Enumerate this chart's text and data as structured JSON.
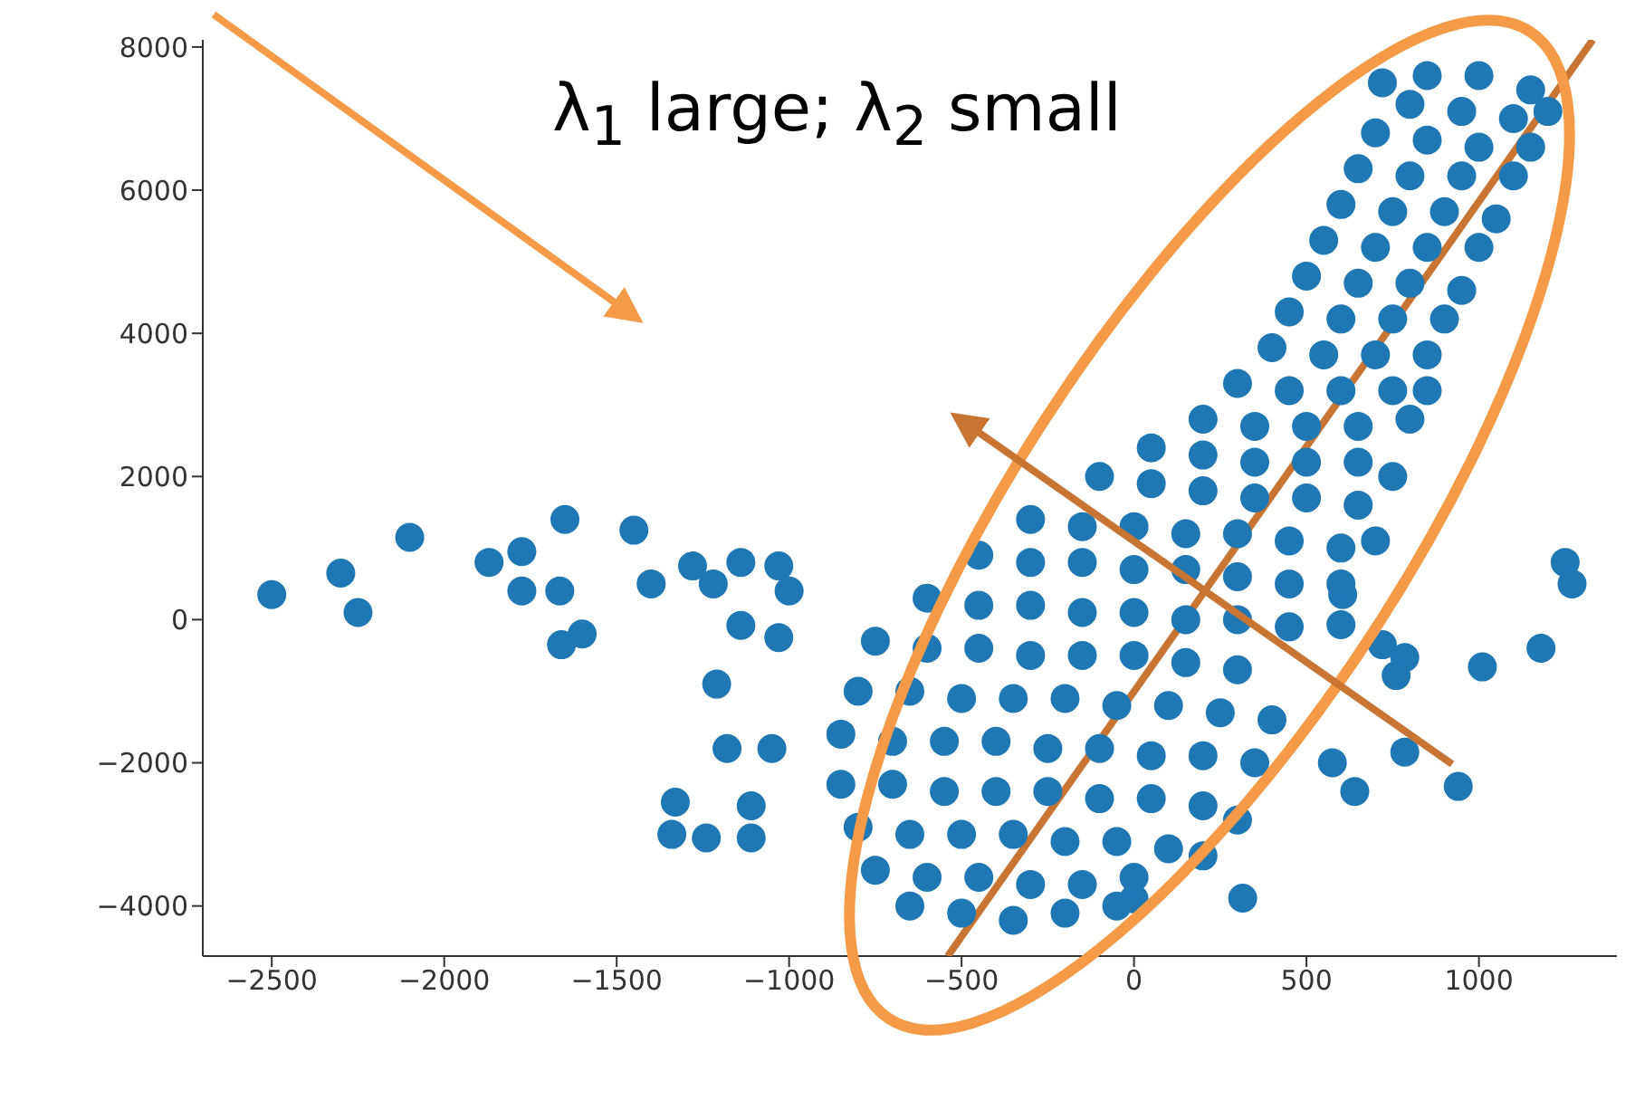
{
  "chart_data": {
    "type": "scatter",
    "marker": "circle",
    "grid": false,
    "legend": false,
    "annotations": [
      "λ$_{1}$ large; λ$_{2}$ small"
    ],
    "xlim": [
      -2700,
      1400
    ],
    "ylim": [
      -4700,
      8100
    ],
    "xticks": [
      {
        "value": -2500,
        "label": "−2500"
      },
      {
        "value": -2000,
        "label": "−2000"
      },
      {
        "value": -1500,
        "label": "−1500"
      },
      {
        "value": -1000,
        "label": "−1000"
      },
      {
        "value": -500,
        "label": "−500"
      },
      0,
      500,
      1000
    ],
    "yticks": [
      {
        "value": -4000,
        "label": "−4000"
      },
      {
        "value": -2000,
        "label": "−2000"
      },
      0,
      2000,
      4000,
      6000,
      8000
    ],
    "series": [
      {
        "type": "line",
        "marker": "none",
        "color": "#c87533",
        "x": [
          -540,
          1330
        ],
        "values": [
          -4700,
          8100
        ]
      },
      {
        "color": "#1f77b4",
        "x": [
          -2500,
          -2300,
          -2250,
          -2100,
          -1870,
          -1775,
          -1775,
          -1665,
          -1650,
          -1660,
          -1600,
          -1450,
          -1400,
          -1280,
          -1220,
          -1140,
          -1030,
          -1000,
          -1140,
          -1030,
          -1210,
          -1180,
          -1050,
          -1340,
          -1240,
          -1110,
          -1110,
          -1330,
          1250,
          1270,
          1180,
          1010,
          785,
          605,
          600,
          720,
          785,
          575,
          760,
          940,
          640,
          315,
          0,
          720,
          850,
          1000,
          1150,
          1200,
          800,
          950,
          1100,
          700,
          850,
          1000,
          1150,
          650,
          800,
          950,
          1100,
          600,
          750,
          900,
          1050,
          550,
          700,
          850,
          1000,
          500,
          650,
          800,
          950,
          450,
          600,
          750,
          900,
          400,
          550,
          700,
          850,
          300,
          450,
          600,
          750,
          850,
          200,
          350,
          500,
          650,
          800,
          50,
          200,
          350,
          500,
          650,
          750,
          -100,
          50,
          200,
          350,
          500,
          650,
          -300,
          -150,
          0,
          150,
          300,
          450,
          600,
          700,
          -450,
          -300,
          -150,
          0,
          150,
          300,
          450,
          600,
          -600,
          -450,
          -300,
          -150,
          0,
          150,
          300,
          450,
          -750,
          -600,
          -450,
          -300,
          -150,
          0,
          150,
          300,
          -800,
          -650,
          -500,
          -350,
          -200,
          -50,
          100,
          250,
          400,
          -850,
          -700,
          -550,
          -400,
          -250,
          -100,
          50,
          200,
          350,
          -850,
          -700,
          -550,
          -400,
          -250,
          -100,
          50,
          200,
          300,
          -800,
          -650,
          -500,
          -350,
          -200,
          -50,
          100,
          200,
          -750,
          -600,
          -450,
          -300,
          -150,
          0,
          -650,
          -500,
          -350,
          -200,
          -50
        ],
        "values": [
          350,
          650,
          100,
          1150,
          800,
          950,
          400,
          400,
          1400,
          -350,
          -200,
          1250,
          500,
          750,
          500,
          800,
          750,
          400,
          -80,
          -250,
          -900,
          -1800,
          -1800,
          -3000,
          -3050,
          -3050,
          -2600,
          -2550,
          800,
          500,
          -400,
          -660,
          -530,
          350,
          -70,
          -350,
          -1850,
          -2000,
          -780,
          -2330,
          -2400,
          -3890,
          -3900,
          7500,
          7600,
          7600,
          7400,
          7100,
          7200,
          7100,
          7000,
          6800,
          6700,
          6600,
          6600,
          6300,
          6200,
          6200,
          6200,
          5800,
          5700,
          5700,
          5600,
          5300,
          5200,
          5200,
          5200,
          4800,
          4700,
          4700,
          4600,
          4300,
          4200,
          4200,
          4200,
          3800,
          3700,
          3700,
          3700,
          3300,
          3200,
          3200,
          3200,
          3200,
          2800,
          2700,
          2700,
          2700,
          2800,
          2400,
          2300,
          2200,
          2200,
          2200,
          2000,
          2000,
          1900,
          1800,
          1700,
          1700,
          1600,
          1400,
          1300,
          1300,
          1200,
          1200,
          1100,
          1000,
          1100,
          900,
          800,
          800,
          700,
          700,
          600,
          500,
          500,
          300,
          200,
          200,
          100,
          100,
          0,
          0,
          -100,
          -300,
          -400,
          -400,
          -500,
          -500,
          -500,
          -600,
          -700,
          -1000,
          -1000,
          -1100,
          -1100,
          -1100,
          -1200,
          -1200,
          -1300,
          -1400,
          -1600,
          -1700,
          -1700,
          -1700,
          -1800,
          -1800,
          -1900,
          -1900,
          -2000,
          -2300,
          -2300,
          -2400,
          -2400,
          -2400,
          -2500,
          -2500,
          -2600,
          -2800,
          -2900,
          -3000,
          -3000,
          -3000,
          -3100,
          -3100,
          -3200,
          -3300,
          -3500,
          -3600,
          -3600,
          -3700,
          -3700,
          -3600,
          -4000,
          -4100,
          -4200,
          -4100,
          -4000
        ]
      }
    ]
  }
}
